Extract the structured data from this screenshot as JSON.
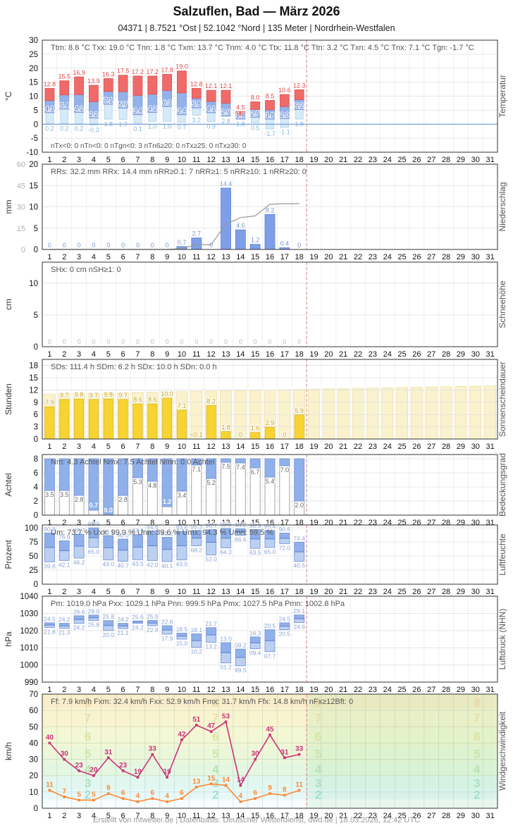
{
  "header": {
    "title": "Salzuflen, Bad  —  März 2026",
    "subtitle": "04371  |  8.7521 °Ost  |  52.1042 °Nord  |  135 Meter  |  Nordrhein-Westfalen"
  },
  "footer": {
    "text": "Erstellt von mtwetter.de | Datenbasis: Deutscher Wetterdienst, dwd.de | 18.03.2026, 12:42 UTC"
  },
  "colors": {
    "tmax_red": "#f06a6a",
    "tmin_blue": "#93b2ea",
    "tgn_pale": "#d6eaf8",
    "precip_blue": "#7e9fe8",
    "sun_yellow": "#f7d431",
    "sun_pale": "#faf2cd",
    "range_upper": "#8fb0ea",
    "range_lower": "#bcd0f2",
    "gust_magenta": "#cc3377",
    "mean_orange": "#ff8833",
    "today_line": "#e08888",
    "cumulative_gray": "#999999",
    "zero_line_blue": "#5b8dd6"
  },
  "chart_data": [
    {
      "id": "temperature",
      "type": "bar-range",
      "unit": "°C",
      "label": "Temperatur",
      "ymin": -10,
      "ymax": 30,
      "yticks": [
        30,
        25,
        20,
        15,
        10,
        5,
        0,
        -5,
        -10
      ],
      "days": 31,
      "observed_days": 18,
      "today_boundary": 18,
      "stats": "Ttm: 8.6 °C    Txx: 19.0 °C    Tnn: 1.8 °C    Txm: 13.7 °C    Tnm: 4.0 °C    Ttx: 11.8 °C    Ttn: 3.2 °C    Txn: 4.5 °C    Tnx: 7.1 °C    Tgn: -1.7 °C",
      "stats_bottom": "nTx<0: 0    nTn<0: 0    nTgn<0: 3    nTn6≥20: 0    nTx≥25: 0    nTx≥30: 0",
      "tmax": [
        12.8,
        15.5,
        16.9,
        13.9,
        16.3,
        17.5,
        17.2,
        17.2,
        17.8,
        19.0,
        12.8,
        12.1,
        12.1,
        4.5,
        8.0,
        8.5,
        10.6,
        12.3
      ],
      "tmin": [
        4.1,
        5.4,
        4.2,
        2.2,
        7.1,
        5.7,
        3.4,
        4.2,
        6.3,
        3.4,
        5.8,
        4.1,
        2.9,
        1.8,
        2.5,
        1.8,
        2.0,
        5.2
      ],
      "tgn": [
        0.2,
        0.2,
        0.2,
        -0.3,
        1.8,
        1.7,
        0.1,
        1.0,
        1.0,
        0.7,
        3.2,
        0.9,
        2.8,
        1.8,
        0.5,
        -1.7,
        -1.1,
        1.8
      ]
    },
    {
      "id": "precipitation",
      "type": "bar",
      "unit": "mm",
      "label": "Niederschlag",
      "ymin": 0,
      "ymax": 20,
      "yticks": [
        20,
        15,
        10,
        5,
        0
      ],
      "yticks2": [
        60,
        45,
        30,
        15,
        0
      ],
      "days": 31,
      "observed_days": 18,
      "today_boundary": 18,
      "stats": "RRs: 32.2 mm    RRx: 14.4 mm    nRR≥0.1: 7    nRR≥1: 5    nRR≥10: 1    nRR≥20: 0",
      "values": [
        0,
        0,
        0,
        0,
        0,
        0,
        0,
        0,
        0,
        0.7,
        2.7,
        0,
        14.4,
        4.6,
        1.2,
        8.2,
        0.4,
        0
      ],
      "labels": [
        "0",
        "0",
        "0",
        "0",
        "0",
        "0",
        "0",
        "0",
        "0",
        "0.7",
        "2.7",
        "0",
        "14.4",
        "4.6",
        "1.2",
        "8.2",
        "0.4",
        "0"
      ],
      "cumulative": [
        0,
        0,
        0,
        0,
        0,
        0,
        0,
        0,
        0,
        0.7,
        3.4,
        3.4,
        17.8,
        22.4,
        23.6,
        31.8,
        32.2,
        32.2
      ],
      "cumulative_axis_max": 60
    },
    {
      "id": "snow",
      "type": "bar",
      "unit": "cm",
      "label": "Schneehöhe",
      "ymin": 0,
      "ymax": 13.3,
      "yticks": [
        10,
        5,
        0
      ],
      "days": 31,
      "observed_days": 18,
      "today_boundary": 18,
      "stats": "SHx: 0 cm    nSH≥1: 0",
      "values": [
        0,
        0,
        0,
        0,
        0,
        0,
        0,
        0,
        0,
        0,
        0,
        0,
        0,
        0,
        0,
        0,
        0,
        0
      ],
      "labels": [
        "0",
        "0",
        "0",
        "0",
        "0",
        "0",
        "0",
        "0",
        "0",
        "0",
        "0",
        "0",
        "0",
        "0",
        "0",
        "0",
        "0",
        "0"
      ]
    },
    {
      "id": "sunshine",
      "type": "bar",
      "unit": "Stunden",
      "label": "Sonnenscheindauer",
      "ymin": 0,
      "ymax": 19.5,
      "yticks": [
        18,
        15,
        12,
        9,
        6,
        3,
        0
      ],
      "days": 31,
      "observed_days": 18,
      "today_boundary": 18,
      "stats": "SDs: 111.4 h    SDm: 6.2 h    SDx: 10.0 h    SDn: 0.0 h",
      "values": [
        7.9,
        9.7,
        9.8,
        9.7,
        9.8,
        9.7,
        8.6,
        8.6,
        10.0,
        7.1,
        0.05,
        8.2,
        1.8,
        0,
        1.6,
        2.9,
        0,
        5.9
      ],
      "labels": [
        "7.9",
        "9.7",
        "9.8",
        "9.7",
        "9.8",
        "9.7",
        "8.6",
        "8.6",
        "10.0",
        "7.1",
        "<0.1",
        "8.2",
        "1.8",
        "0",
        "1.6",
        "2.9",
        "0",
        "5.9"
      ],
      "daylight": [
        11.0,
        11.07,
        11.13,
        11.2,
        11.27,
        11.33,
        11.4,
        11.47,
        11.53,
        11.6,
        11.67,
        11.73,
        11.8,
        11.87,
        11.93,
        12.0,
        12.07,
        12.13,
        12.2,
        12.27,
        12.33,
        12.4,
        12.47,
        12.53,
        12.6,
        12.67,
        12.73,
        12.8,
        12.87,
        12.93,
        13.0
      ]
    },
    {
      "id": "cloudcover",
      "type": "cloud",
      "unit": "Achtel",
      "label": "Bedeckungsgrad",
      "ymin": 0,
      "ymax": 8.6,
      "yticks": [
        8,
        6,
        4,
        2,
        0
      ],
      "full_scale": 8,
      "days": 31,
      "observed_days": 18,
      "today_boundary": 18,
      "stats": "Nm: 4.3 Achtel    Nmx: 7.5 Achtel    Nmn: 0.0 Achtel",
      "values": [
        3.5,
        3.5,
        2.8,
        0.7,
        0.0,
        2.8,
        5.3,
        4.8,
        1.2,
        3.4,
        7.1,
        5.2,
        7.5,
        7.4,
        6.7,
        5.4,
        7.0,
        2.0
      ],
      "labels": [
        "3.5",
        "3.5",
        "2.8",
        "0.7",
        "0.0",
        "2.8",
        "5.3",
        "4.8",
        "1.2",
        "3.4",
        "7.1",
        "5.2",
        "7.5",
        "7.4",
        "6.7",
        "5.4",
        "7.0",
        "2.0"
      ]
    },
    {
      "id": "humidity",
      "type": "range",
      "unit": "Prozent",
      "label": "Luftfeuchte",
      "ymin": 0,
      "ymax": 105,
      "yticks": [
        100,
        75,
        50,
        25,
        0
      ],
      "days": 31,
      "observed_days": 18,
      "today_boundary": 18,
      "stats": "Um: 73.7 %    Uxx: 99.9 %    Unn: 39.6 %    Umx: 94.3 %    Umn: 59.5 %",
      "max": [
        90.8,
        76.9,
        88.7,
        99.9,
        86.1,
        80.0,
        87.9,
        94.6,
        83.2,
        93.6,
        95.3,
        96.7,
        98.8,
        98.2,
        96.9,
        95.4,
        90.6,
        74.4
      ],
      "min": [
        39.6,
        42.1,
        46.2,
        65.0,
        43.0,
        40.7,
        43.5,
        42.0,
        40.1,
        43.0,
        68.2,
        52.0,
        64.3,
        86.6,
        63.5,
        65.0,
        72.0,
        40.5
      ],
      "labels_max": [
        "90.8",
        "76.9",
        "88.7",
        "99.9",
        "86.1",
        "80.0",
        "87.9",
        "94.6",
        "83.2",
        "93.6",
        "95.3",
        "96.7",
        "98.8",
        "98.2",
        "96.9",
        "95.4",
        "90.6",
        "74.4"
      ],
      "labels_min": [
        "39.6",
        "42.1",
        "46.2",
        "65.0",
        "43.0",
        "40.7",
        "43.5",
        "42.0",
        "40.1",
        "43.0",
        "68.2",
        "52.0",
        "64.3",
        "86.6",
        "63.5",
        "65.0",
        "72.0",
        "40.5"
      ]
    },
    {
      "id": "pressure",
      "type": "range",
      "unit": "hPa",
      "label": "Luftdruck (NHN)",
      "ymin": 990,
      "ymax": 1040,
      "yticks": [
        1040,
        1030,
        1020,
        1010,
        1000,
        990
      ],
      "days": 31,
      "observed_days": 18,
      "today_boundary": 18,
      "stats": "Pm: 1019.0 hPa    Pxx: 1029.1 hPa    Pnn: 999.5 hPa    Pmx: 1027.5 hPa    Pmn: 1002.8 hPa",
      "max": [
        1024.5,
        1024.2,
        1028.6,
        1029.0,
        1025.8,
        1024.2,
        1025.6,
        1025.9,
        1022.8,
        1018.5,
        1018.1,
        1021.7,
        1013.0,
        1009.2,
        1016.3,
        1020.5,
        1024.5,
        1029.1
      ],
      "min": [
        1021.8,
        1021.3,
        1024.2,
        1025.8,
        1020.0,
        1021.1,
        1024.2,
        1022.8,
        1017.9,
        1015.0,
        1010.2,
        1013.2,
        1001.2,
        999.5,
        1009.4,
        1007.7,
        1020.5,
        1024.6
      ],
      "labels_max": [
        "24.5",
        "24.2",
        "28.6",
        "29.0",
        "25.8",
        "24.2",
        "25.6",
        "25.9",
        "22.8",
        "18.5",
        "18.1",
        "21.7",
        "13.0",
        "09.2",
        "16.3",
        "20.5",
        "24.5",
        "29.1"
      ],
      "labels_min": [
        "21.8",
        "21.3",
        "24.2",
        "25.8",
        "20.0",
        "21.1",
        "24.2",
        "22.8",
        "17.9",
        "15.0",
        "10.2",
        "13.2",
        "01.2",
        "99.5",
        "09.4",
        "07.7",
        "20.5",
        "24.6"
      ]
    },
    {
      "id": "wind",
      "type": "line",
      "unit": "km/h",
      "label": "Windgeschwindigkeit",
      "ymin": 0,
      "ymax": 70,
      "yticks": [
        70,
        60,
        50,
        40,
        30,
        20,
        10,
        0
      ],
      "days": 31,
      "observed_days": 18,
      "today_boundary": 18,
      "stats": "Ff: 7.9 km/h    Fxm: 32.4 km/h    Fxx: 52.9 km/h    Fmx: 31.7 km/h    Ffx: 14.8 km/h    nFx≥12Bft: 0",
      "gust": [
        40,
        30,
        23,
        20,
        31,
        23,
        19,
        33,
        19,
        42,
        51,
        47,
        53,
        14,
        30,
        45,
        31,
        33
      ],
      "mean": [
        11,
        7,
        5,
        5,
        9,
        6,
        4,
        6,
        4,
        6,
        13,
        15,
        14,
        4,
        6,
        9,
        8,
        11
      ],
      "beaufort_numbers": [
        8,
        7,
        6,
        5,
        4,
        3,
        2
      ],
      "beaufort_y": [
        65,
        55.5,
        44,
        33.5,
        24,
        15.5,
        8.5
      ],
      "beaufort_columns": [
        3.6,
        12.3,
        19.3,
        30.1
      ]
    }
  ]
}
